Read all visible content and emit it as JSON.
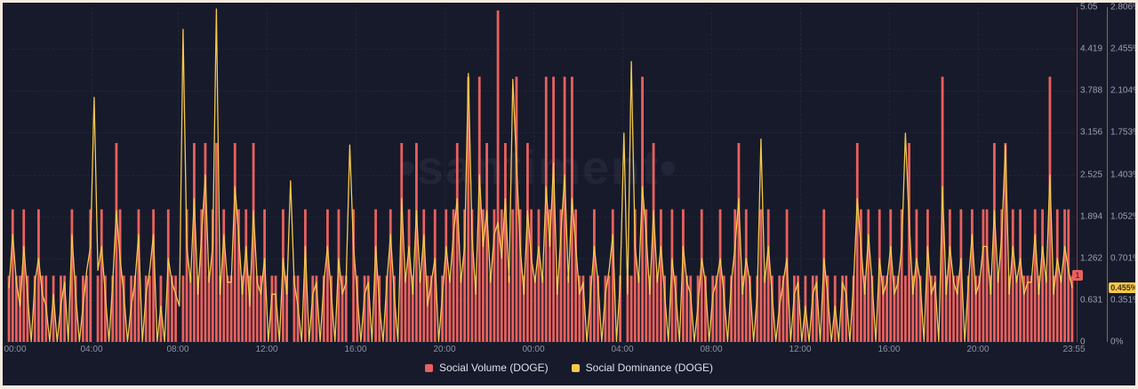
{
  "watermark": "•santiment•",
  "colors": {
    "background": "#171a2a",
    "frame": "#f7ebe1",
    "volume": "#e8615e",
    "dominance": "#f5c84e",
    "tick_text": "#99a0b4"
  },
  "legend": [
    {
      "label": "Social Volume (DOGE)",
      "color": "#e8615e"
    },
    {
      "label": "Social Dominance (DOGE)",
      "color": "#f5c84e"
    }
  ],
  "axis_volume": {
    "ticks": [
      "5.05",
      "4.419",
      "3.788",
      "3.156",
      "2.525",
      "1.894",
      "1.262",
      "0.631",
      "0"
    ],
    "max": 5.05,
    "badge": "1"
  },
  "axis_dominance": {
    "ticks": [
      "2.806%",
      "2.455%",
      "2.104%",
      "1.753%",
      "1.403%",
      "1.052%",
      "0.701%",
      "0.351%",
      "0%"
    ],
    "max": 2.806,
    "badge": "0.455%"
  },
  "x_axis": {
    "labels": [
      "00:00",
      "04:00",
      "08:00",
      "12:00",
      "16:00",
      "20:00",
      "00:00",
      "04:00",
      "08:00",
      "12:00",
      "16:00",
      "20:00",
      "23:55"
    ]
  },
  "chart_data": {
    "type": "bar",
    "note": "dual-axis: Social Volume bars (left-listed axis, 0-5.05) + Social Dominance line (0-2.806%), 48h span at ~10min resolution, approximate values read from pixels",
    "x_tick_labels": [
      "00:00",
      "04:00",
      "08:00",
      "12:00",
      "16:00",
      "20:00",
      "00:00",
      "04:00",
      "08:00",
      "12:00",
      "16:00",
      "20:00",
      "23:55"
    ],
    "grid": true,
    "legend_position": "bottom",
    "series": [
      {
        "name": "Social Volume (DOGE)",
        "type": "bar",
        "color": "#e8615e",
        "ylim": [
          0,
          5.05
        ],
        "current_value": 1,
        "values": [
          1,
          2,
          1,
          1,
          2,
          1,
          0,
          1,
          2,
          1,
          1,
          0,
          1,
          0,
          1,
          1,
          0,
          2,
          1,
          0,
          1,
          1,
          2,
          0,
          1,
          2,
          1,
          0,
          1,
          3,
          2,
          1,
          0,
          1,
          1,
          2,
          0,
          1,
          1,
          2,
          0,
          1,
          0,
          2,
          1,
          1,
          0,
          1,
          2,
          1,
          3,
          1,
          2,
          3,
          1,
          2,
          3,
          1,
          2,
          1,
          1,
          3,
          2,
          1,
          2,
          1,
          3,
          1,
          1,
          2,
          0,
          1,
          1,
          0,
          2,
          1,
          0,
          1,
          1,
          0,
          2,
          0,
          1,
          1,
          0,
          1,
          2,
          1,
          0,
          2,
          1,
          1,
          0,
          2,
          1,
          0,
          1,
          1,
          0,
          2,
          1,
          0,
          1,
          2,
          1,
          0,
          3,
          1,
          2,
          1,
          3,
          1,
          2,
          1,
          1,
          2,
          0,
          1,
          2,
          1,
          2,
          3,
          1,
          2,
          4,
          2,
          1,
          4,
          2,
          3,
          1,
          2,
          5,
          2,
          3,
          1,
          2,
          4,
          2,
          1,
          3,
          2,
          1,
          2,
          1,
          4,
          2,
          4,
          1,
          2,
          4,
          1,
          4,
          2,
          1,
          1,
          0,
          1,
          2,
          1,
          0,
          1,
          1,
          2,
          0,
          1,
          0,
          1,
          1,
          2,
          1,
          4,
          2,
          1,
          3,
          1,
          2,
          1,
          0,
          2,
          1,
          0,
          2,
          1,
          1,
          0,
          1,
          2,
          1,
          0,
          1,
          1,
          2,
          1,
          0,
          1,
          2,
          3,
          1,
          2,
          1,
          0,
          1,
          2,
          1,
          2,
          1,
          0,
          1,
          1,
          2,
          0,
          1,
          1,
          0,
          1,
          0,
          1,
          1,
          0,
          2,
          1,
          0,
          1,
          0,
          1,
          1,
          0,
          1,
          3,
          2,
          1,
          2,
          1,
          0,
          2,
          1,
          1,
          2,
          1,
          1,
          2,
          1,
          3,
          1,
          2,
          1,
          0,
          2,
          1,
          1,
          0,
          4,
          1,
          2,
          1,
          1,
          2,
          0,
          1,
          2,
          1,
          1,
          2,
          2,
          1,
          3,
          1,
          2,
          3,
          1,
          2,
          1,
          2,
          1,
          1,
          1,
          2,
          1,
          2,
          1,
          4,
          1,
          2,
          1,
          2,
          2,
          1
        ]
      },
      {
        "name": "Social Dominance (DOGE)",
        "type": "line",
        "unit": "%",
        "color": "#f5c84e",
        "ylim": [
          0,
          2.806
        ],
        "current_value": 0.455,
        "values": [
          0.45,
          0.9,
          0.5,
          0.3,
          0.8,
          0.4,
          0,
          0.5,
          0.7,
          0.4,
          0.3,
          0,
          0.4,
          0,
          0.3,
          0.5,
          0,
          0.9,
          0.4,
          0,
          0.3,
          0.6,
          0.8,
          2.05,
          0.6,
          0.8,
          0.4,
          0,
          0.5,
          1.1,
          0.7,
          0.4,
          0,
          0.3,
          0.5,
          0.9,
          0,
          0.4,
          0.6,
          0.9,
          0,
          0.3,
          0,
          0.7,
          0.5,
          0.4,
          0.3,
          2.62,
          0.8,
          0.5,
          1.2,
          0.4,
          0.9,
          1.4,
          0.5,
          0.8,
          2.79,
          0.4,
          0.9,
          0.5,
          0.5,
          1.3,
          0.9,
          0.4,
          0.8,
          0.3,
          1.1,
          0.5,
          0.4,
          0.7,
          0,
          0.4,
          0.4,
          0,
          0.7,
          0.4,
          1.35,
          0.5,
          0.3,
          0,
          0.8,
          0,
          0.4,
          0.5,
          0,
          0.5,
          0.8,
          0.4,
          0,
          0.7,
          0.4,
          0.5,
          1.65,
          0.8,
          0.4,
          0,
          0.4,
          0.5,
          0,
          0.8,
          0.3,
          0,
          0.5,
          0.9,
          0.4,
          0,
          1.2,
          0.5,
          0.8,
          0.4,
          1.1,
          0.5,
          0.9,
          0.3,
          0.5,
          0.7,
          0,
          0.4,
          0.8,
          0.5,
          0.9,
          1.2,
          0.5,
          0.8,
          2.25,
          0.9,
          0.4,
          1.4,
          0.8,
          1.1,
          0.5,
          0.9,
          1.0,
          0.7,
          1.2,
          0.5,
          2.2,
          1.5,
          0.8,
          0.4,
          1.1,
          0.7,
          0.5,
          0.8,
          0.5,
          1.3,
          0.8,
          1.5,
          0.4,
          0.9,
          1.4,
          0.5,
          1.2,
          0.8,
          0.4,
          0.5,
          0,
          0.4,
          0.8,
          0.5,
          0,
          0.4,
          0.6,
          0.9,
          0,
          0.5,
          1.75,
          0.4,
          2.35,
          0.8,
          0.5,
          1.3,
          0.9,
          0.4,
          1.1,
          0.5,
          0.8,
          0.4,
          0,
          0.7,
          0.4,
          0,
          0.8,
          0.5,
          0.4,
          0,
          0.3,
          0.7,
          0.5,
          0,
          0.4,
          0.5,
          0.7,
          0.4,
          0,
          0.5,
          0.8,
          1.2,
          0.4,
          0.7,
          0.5,
          0,
          0.4,
          1.7,
          0.5,
          0.8,
          0.4,
          0,
          0.3,
          0.5,
          0.7,
          0,
          0.4,
          0.5,
          0,
          0.3,
          0,
          0.4,
          0.5,
          0,
          0.7,
          0.4,
          0,
          0.3,
          0,
          0.5,
          0.4,
          0,
          0.5,
          1.2,
          0.8,
          0.4,
          0.9,
          0.5,
          0,
          0.7,
          0.4,
          0.5,
          0.8,
          0.4,
          0.5,
          0.8,
          1.75,
          1.0,
          0.4,
          0.7,
          0.5,
          0,
          0.8,
          0.4,
          0.5,
          0,
          1.3,
          0.4,
          0.8,
          0.5,
          0.4,
          0.7,
          0,
          0.5,
          0.9,
          0.4,
          0.5,
          0.8,
          0.8,
          0.4,
          1.1,
          0.5,
          0.9,
          1.65,
          0.4,
          0.8,
          0.5,
          0.7,
          0.4,
          0.5,
          0.5,
          0.9,
          0.4,
          0.8,
          0.5,
          1.4,
          0.4,
          0.7,
          0.5,
          0.8,
          0.6,
          0.455
        ]
      }
    ]
  }
}
